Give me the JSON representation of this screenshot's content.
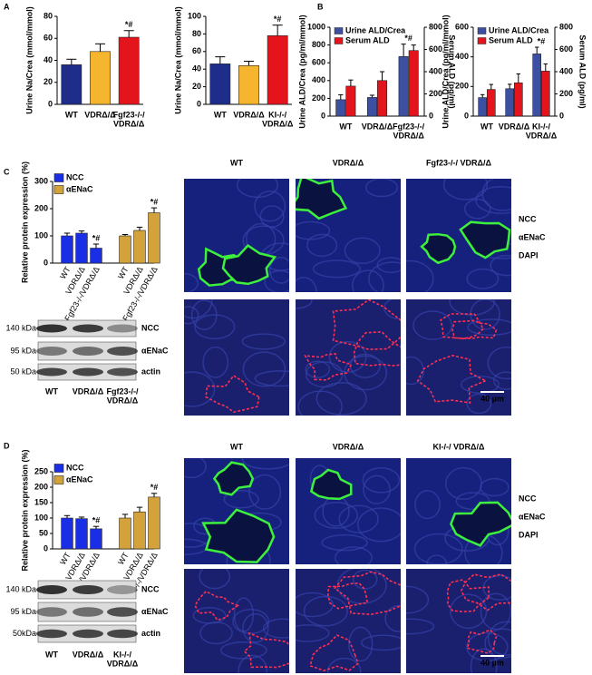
{
  "panels": [
    "A",
    "B",
    "C",
    "D"
  ],
  "chart_data": [
    {
      "type": "bar",
      "ylabel": "Urine Na/Crea (mmol/mmol)",
      "categories": [
        "WT",
        "VDRΔ/Δ",
        [
          "Fgf23-/-/",
          "VDRΔ/Δ"
        ]
      ],
      "values": [
        36,
        48,
        61
      ],
      "errors": [
        5,
        7,
        6
      ],
      "colors": [
        "#1f2d8a",
        "#f5b52e",
        "#e3141c"
      ],
      "markers": [
        null,
        null,
        "*#"
      ],
      "ylim": [
        0,
        80
      ],
      "yticks": [
        0,
        20,
        40,
        60,
        80
      ]
    },
    {
      "type": "bar",
      "ylabel": "Urine Na/Crea (mmol/mmol)",
      "categories": [
        "WT",
        "VDRΔ/Δ",
        [
          "KI-/-/",
          "VDRΔ/Δ"
        ]
      ],
      "values": [
        46,
        44,
        78
      ],
      "errors": [
        8,
        5,
        12
      ],
      "colors": [
        "#1f2d8a",
        "#f5b52e",
        "#e3141c"
      ],
      "markers": [
        null,
        null,
        "*#"
      ],
      "ylim": [
        0,
        100
      ],
      "yticks": [
        0,
        20,
        40,
        60,
        80,
        100
      ]
    },
    {
      "type": "bar",
      "ylabel": "Urine ALD/Crea (pg/ml/mmol)",
      "y2label": "Serum ALD (pg/ml)",
      "categories": [
        "WT",
        "VDRΔ/Δ",
        [
          "Fgf23-/-/",
          "VDRΔ/Δ"
        ]
      ],
      "series": [
        {
          "name": "Urine ALD/Crea",
          "color": "#3c4fa0",
          "values": [
            185,
            210,
            670
          ],
          "errors": [
            55,
            25,
            140
          ]
        },
        {
          "name": "Serum ALD",
          "color": "#e3141c",
          "axis": "y2",
          "values": [
            270,
            320,
            590
          ],
          "errors": [
            55,
            80,
            50
          ]
        }
      ],
      "category_markers": [
        null,
        null,
        "*#"
      ],
      "ylim": [
        0,
        1000
      ],
      "yticks": [
        0,
        200,
        400,
        600,
        800,
        1000
      ],
      "y2lim": [
        0,
        800
      ],
      "y2ticks": [
        0,
        200,
        400,
        600,
        800
      ]
    },
    {
      "type": "bar",
      "ylabel": "Urine ALD/Crea (pg/ml/mmol)",
      "y2label": "Serum ALD (pg/ml)",
      "categories": [
        "WT",
        "VDRΔ/Δ",
        [
          "KI-/-/",
          "VDRΔ/Δ"
        ]
      ],
      "series": [
        {
          "name": "Urine ALD/Crea",
          "color": "#3c4fa0",
          "values": [
            125,
            185,
            420
          ],
          "errors": [
            20,
            30,
            45
          ]
        },
        {
          "name": "Serum ALD",
          "color": "#e3141c",
          "axis": "y2",
          "values": [
            240,
            300,
            405
          ],
          "errors": [
            45,
            80,
            65
          ]
        }
      ],
      "category_markers": [
        null,
        null,
        "*#"
      ],
      "ylim": [
        0,
        600
      ],
      "yticks": [
        0,
        200,
        400,
        600
      ],
      "y2lim": [
        0,
        800
      ],
      "y2ticks": [
        0,
        200,
        400,
        600,
        800
      ]
    },
    {
      "type": "bar",
      "ylabel": "Relative protein expression (%)",
      "categories": [
        "WT",
        "VDRΔ/Δ",
        "Fgf23-/-/VDRΔ/Δ"
      ],
      "series": [
        {
          "name": "NCC",
          "color": "#1a2ee6",
          "values": [
            100,
            110,
            55
          ],
          "errors": [
            10,
            8,
            15
          ],
          "markers": [
            null,
            null,
            "*#"
          ]
        },
        {
          "name": "αENaC",
          "color": "#d4a23a",
          "values": [
            100,
            120,
            185
          ],
          "errors": [
            5,
            12,
            18
          ],
          "markers": [
            null,
            null,
            "*#"
          ]
        }
      ],
      "ylim": [
        0,
        300
      ],
      "yticks": [
        0,
        100,
        200,
        300
      ]
    },
    {
      "type": "bar",
      "ylabel": "Relative protein expression (%)",
      "categories": [
        "WT",
        "VDRΔ/Δ",
        "KI-/-/VDRΔ/Δ"
      ],
      "series": [
        {
          "name": "NCC",
          "color": "#1a2ee6",
          "values": [
            100,
            98,
            65
          ],
          "errors": [
            8,
            5,
            8
          ],
          "markers": [
            null,
            null,
            "*#"
          ]
        },
        {
          "name": "αENaC",
          "color": "#d4a23a",
          "values": [
            100,
            120,
            168
          ],
          "errors": [
            12,
            15,
            12
          ],
          "markers": [
            null,
            null,
            "*#"
          ]
        }
      ],
      "ylim": [
        0,
        250
      ],
      "yticks": [
        0,
        50,
        100,
        150,
        200,
        250
      ]
    }
  ],
  "blots": [
    {
      "kda": [
        "140 kDa",
        "95 kDa",
        "50 kDa"
      ],
      "proteins": [
        "NCC",
        "αENaC",
        "actin"
      ],
      "lanes": [
        "WT",
        "VDRΔ/Δ",
        [
          "Fgf23-/-/",
          "VDRΔ/Δ"
        ]
      ]
    },
    {
      "kda": [
        "140 kDa",
        "95 kDa",
        "50kDa"
      ],
      "proteins": [
        "NCC",
        "αENaC",
        "actin"
      ],
      "lanes": [
        "WT",
        "VDRΔ/Δ",
        [
          "KI-/-/",
          "VDRΔ/Δ"
        ]
      ]
    }
  ],
  "images": [
    {
      "columns": [
        "WT",
        "VDRΔ/Δ",
        "Fgf23-/-/ VDRΔ/Δ"
      ],
      "stains": [
        "NCC",
        "αENaC",
        "DAPI"
      ],
      "scale_bar": "40 µm"
    },
    {
      "columns": [
        "WT",
        "VDRΔ/Δ",
        "KI-/-/ VDRΔ/Δ"
      ],
      "stains": [
        "NCC",
        "αENaC",
        "DAPI"
      ],
      "scale_bar": "40 µm"
    }
  ]
}
